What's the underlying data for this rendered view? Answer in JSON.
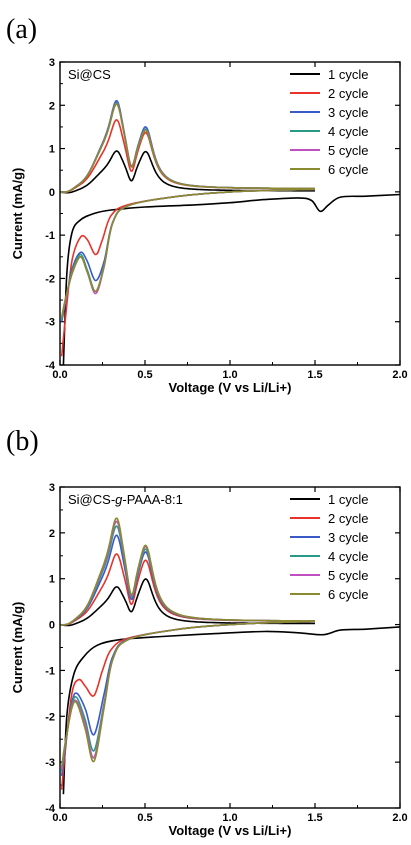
{
  "chart_data": [
    {
      "panel": "(a)",
      "type": "line",
      "sample": "Si@CS",
      "xlabel": "Voltage (V vs Li/Li+)",
      "ylabel": "Current (mA/g)",
      "xlim": [
        0,
        2.0
      ],
      "ylim": [
        -4,
        3
      ],
      "xticks": [
        "0.0",
        "0.5",
        "1.0",
        "1.5",
        "2.0"
      ],
      "yticks": [
        "-4",
        "-3",
        "-2",
        "-1",
        "0",
        "1",
        "2",
        "3"
      ],
      "legend_position": "top-right",
      "series": [
        {
          "name": "1 cycle",
          "color": "#000000",
          "anodic_peaks": [
            0.88,
            0.9
          ],
          "tail": 0.02,
          "cathodic": [
            [
              0.02,
              -4.0
            ],
            [
              0.04,
              -1.9
            ],
            [
              0.07,
              -0.95
            ],
            [
              0.12,
              -0.65
            ],
            [
              0.2,
              -0.5
            ],
            [
              0.3,
              -0.42
            ],
            [
              0.5,
              -0.35
            ],
            [
              0.8,
              -0.3
            ],
            [
              1.0,
              -0.25
            ],
            [
              1.2,
              -0.18
            ],
            [
              1.4,
              -0.14
            ],
            [
              1.48,
              -0.2
            ],
            [
              1.53,
              -0.45
            ],
            [
              1.58,
              -0.3
            ],
            [
              1.65,
              -0.12
            ],
            [
              1.8,
              -0.1
            ],
            [
              2.0,
              -0.06
            ]
          ]
        },
        {
          "name": "2 cycle",
          "color": "#e8322a",
          "anodic_peaks": [
            1.58,
            1.3
          ],
          "tail": 0.07,
          "cathodic": [
            [
              0.01,
              -3.8
            ],
            [
              0.03,
              -3.0
            ],
            [
              0.07,
              -1.6
            ],
            [
              0.12,
              -1.05
            ],
            [
              0.16,
              -1.1
            ],
            [
              0.21,
              -1.45
            ],
            [
              0.25,
              -1.1
            ],
            [
              0.3,
              -0.55
            ],
            [
              0.4,
              -0.3
            ],
            [
              0.7,
              -0.1
            ],
            [
              1.0,
              0.0
            ],
            [
              1.3,
              0.04
            ],
            [
              1.5,
              0.06
            ]
          ]
        },
        {
          "name": "3 cycle",
          "color": "#3a5bc7",
          "anodic_peaks": [
            2.02,
            1.4
          ],
          "tail": 0.07,
          "cathodic": [
            [
              0.01,
              -3.0
            ],
            [
              0.03,
              -2.6
            ],
            [
              0.07,
              -1.8
            ],
            [
              0.12,
              -1.4
            ],
            [
              0.16,
              -1.6
            ],
            [
              0.21,
              -2.05
            ],
            [
              0.26,
              -1.6
            ],
            [
              0.31,
              -0.7
            ],
            [
              0.4,
              -0.32
            ],
            [
              0.7,
              -0.1
            ],
            [
              1.0,
              0.0
            ],
            [
              1.3,
              0.04
            ],
            [
              1.5,
              0.06
            ]
          ]
        },
        {
          "name": "4 cycle",
          "color": "#2a9a88",
          "anodic_peaks": [
            1.98,
            1.35
          ],
          "tail": 0.07,
          "cathodic": [
            [
              0.01,
              -2.95
            ],
            [
              0.03,
              -2.55
            ],
            [
              0.07,
              -1.85
            ],
            [
              0.12,
              -1.45
            ],
            [
              0.16,
              -1.8
            ],
            [
              0.21,
              -2.3
            ],
            [
              0.26,
              -1.7
            ],
            [
              0.31,
              -0.72
            ],
            [
              0.4,
              -0.32
            ],
            [
              0.7,
              -0.1
            ],
            [
              1.0,
              0.0
            ],
            [
              1.3,
              0.04
            ],
            [
              1.5,
              0.06
            ]
          ]
        },
        {
          "name": "5 cycle",
          "color": "#c050c0",
          "anodic_peaks": [
            1.96,
            1.33
          ],
          "tail": 0.07,
          "cathodic": [
            [
              0.01,
              -2.9
            ],
            [
              0.03,
              -2.55
            ],
            [
              0.07,
              -1.9
            ],
            [
              0.12,
              -1.5
            ],
            [
              0.16,
              -1.85
            ],
            [
              0.21,
              -2.35
            ],
            [
              0.26,
              -1.72
            ],
            [
              0.31,
              -0.72
            ],
            [
              0.4,
              -0.32
            ],
            [
              0.7,
              -0.1
            ],
            [
              1.0,
              0.0
            ],
            [
              1.3,
              0.04
            ],
            [
              1.5,
              0.06
            ]
          ]
        },
        {
          "name": "6 cycle",
          "color": "#8a8a30",
          "anodic_peaks": [
            1.95,
            1.32
          ],
          "tail": 0.07,
          "cathodic": [
            [
              0.01,
              -2.9
            ],
            [
              0.03,
              -2.5
            ],
            [
              0.07,
              -1.9
            ],
            [
              0.12,
              -1.5
            ],
            [
              0.16,
              -1.85
            ],
            [
              0.21,
              -2.3
            ],
            [
              0.26,
              -1.7
            ],
            [
              0.31,
              -0.72
            ],
            [
              0.4,
              -0.32
            ],
            [
              0.7,
              -0.1
            ],
            [
              1.0,
              0.0
            ],
            [
              1.3,
              0.04
            ],
            [
              1.5,
              0.06
            ]
          ]
        }
      ]
    },
    {
      "panel": "(b)",
      "type": "line",
      "sample": "Si@CS-g-PAAA-8:1",
      "xlabel": "Voltage (V vs Li/Li+)",
      "ylabel": "Current (mA/g)",
      "xlim": [
        0,
        2.0
      ],
      "ylim": [
        -4,
        3
      ],
      "xticks": [
        "0.0",
        "0.5",
        "1.0",
        "1.5",
        "2.0"
      ],
      "yticks": [
        "-4",
        "-3",
        "-2",
        "-1",
        "0",
        "1",
        "2",
        "3"
      ],
      "legend_position": "top-right",
      "series": [
        {
          "name": "1 cycle",
          "color": "#000000",
          "anodic_peaks": [
            0.75,
            0.98
          ],
          "tail": 0.02,
          "cathodic": [
            [
              0.02,
              -3.7
            ],
            [
              0.04,
              -2.0
            ],
            [
              0.08,
              -1.1
            ],
            [
              0.14,
              -0.7
            ],
            [
              0.22,
              -0.45
            ],
            [
              0.35,
              -0.33
            ],
            [
              0.6,
              -0.26
            ],
            [
              0.9,
              -0.2
            ],
            [
              1.2,
              -0.15
            ],
            [
              1.4,
              -0.18
            ],
            [
              1.55,
              -0.22
            ],
            [
              1.65,
              -0.12
            ],
            [
              1.8,
              -0.1
            ],
            [
              2.0,
              -0.05
            ]
          ]
        },
        {
          "name": "2 cycle",
          "color": "#e8322a",
          "anodic_peaks": [
            1.45,
            1.35
          ],
          "tail": 0.07,
          "cathodic": [
            [
              0.01,
              -3.6
            ],
            [
              0.03,
              -2.8
            ],
            [
              0.07,
              -1.5
            ],
            [
              0.11,
              -1.2
            ],
            [
              0.15,
              -1.35
            ],
            [
              0.2,
              -1.55
            ],
            [
              0.25,
              -1.0
            ],
            [
              0.3,
              -0.55
            ],
            [
              0.4,
              -0.3
            ],
            [
              0.7,
              -0.1
            ],
            [
              1.0,
              0.0
            ],
            [
              1.3,
              0.05
            ],
            [
              1.5,
              0.07
            ]
          ]
        },
        {
          "name": "3 cycle",
          "color": "#3a5bc7",
          "anodic_peaks": [
            1.85,
            1.5
          ],
          "tail": 0.07,
          "cathodic": [
            [
              0.01,
              -3.3
            ],
            [
              0.03,
              -2.7
            ],
            [
              0.07,
              -1.7
            ],
            [
              0.1,
              -1.5
            ],
            [
              0.15,
              -1.85
            ],
            [
              0.2,
              -2.4
            ],
            [
              0.26,
              -1.5
            ],
            [
              0.31,
              -0.7
            ],
            [
              0.4,
              -0.32
            ],
            [
              0.7,
              -0.1
            ],
            [
              1.0,
              0.0
            ],
            [
              1.3,
              0.05
            ],
            [
              1.5,
              0.07
            ]
          ]
        },
        {
          "name": "4 cycle",
          "color": "#2a9a88",
          "anodic_peaks": [
            2.05,
            1.55
          ],
          "tail": 0.07,
          "cathodic": [
            [
              0.01,
              -3.2
            ],
            [
              0.03,
              -2.65
            ],
            [
              0.07,
              -1.75
            ],
            [
              0.1,
              -1.6
            ],
            [
              0.15,
              -2.1
            ],
            [
              0.2,
              -2.75
            ],
            [
              0.26,
              -1.7
            ],
            [
              0.31,
              -0.75
            ],
            [
              0.4,
              -0.33
            ],
            [
              0.7,
              -0.1
            ],
            [
              1.0,
              0.0
            ],
            [
              1.3,
              0.05
            ],
            [
              1.5,
              0.07
            ]
          ]
        },
        {
          "name": "5 cycle",
          "color": "#c050c0",
          "anodic_peaks": [
            2.15,
            1.6
          ],
          "tail": 0.07,
          "cathodic": [
            [
              0.01,
              -3.15
            ],
            [
              0.03,
              -2.6
            ],
            [
              0.07,
              -1.8
            ],
            [
              0.1,
              -1.68
            ],
            [
              0.15,
              -2.2
            ],
            [
              0.2,
              -2.9
            ],
            [
              0.26,
              -1.75
            ],
            [
              0.31,
              -0.76
            ],
            [
              0.4,
              -0.33
            ],
            [
              0.7,
              -0.1
            ],
            [
              1.0,
              0.0
            ],
            [
              1.3,
              0.05
            ],
            [
              1.5,
              0.07
            ]
          ]
        },
        {
          "name": "6 cycle",
          "color": "#8a8a30",
          "anodic_peaks": [
            2.22,
            1.62
          ],
          "tail": 0.07,
          "cathodic": [
            [
              0.01,
              -3.1
            ],
            [
              0.03,
              -2.6
            ],
            [
              0.07,
              -1.82
            ],
            [
              0.1,
              -1.72
            ],
            [
              0.15,
              -2.3
            ],
            [
              0.2,
              -2.98
            ],
            [
              0.26,
              -1.8
            ],
            [
              0.31,
              -0.77
            ],
            [
              0.4,
              -0.33
            ],
            [
              0.7,
              -0.1
            ],
            [
              1.0,
              0.0
            ],
            [
              1.3,
              0.05
            ],
            [
              1.5,
              0.07
            ]
          ]
        }
      ]
    }
  ]
}
